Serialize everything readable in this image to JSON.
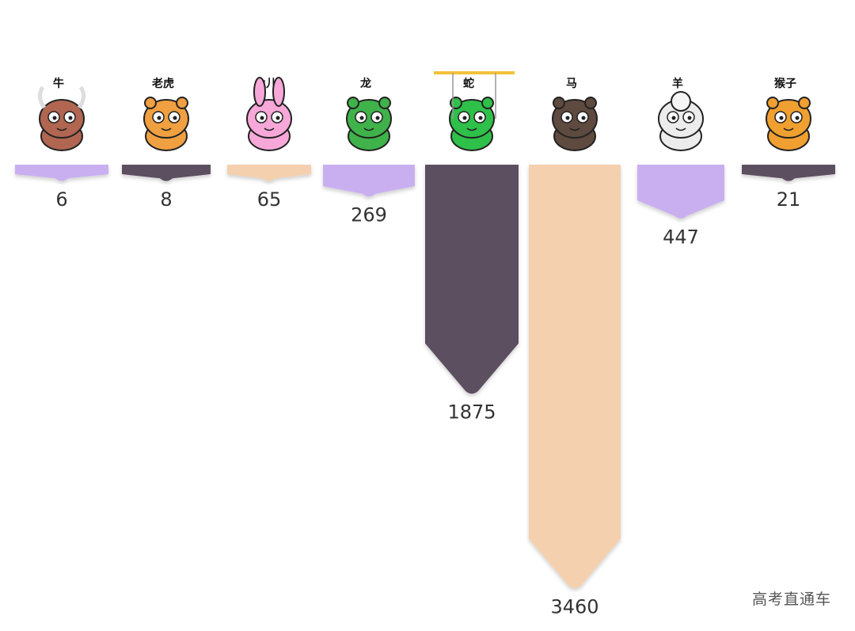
{
  "chart_data": {
    "type": "bar",
    "orientation": "downward",
    "categories": [
      "牛",
      "老虎",
      "兔儿",
      "龙",
      "蛇",
      "马",
      "羊",
      "猴子"
    ],
    "values": [
      6,
      8,
      65,
      269,
      1875,
      3460,
      447,
      21
    ],
    "title": "",
    "xlabel": "",
    "ylabel": "",
    "grid": false,
    "legend": "none"
  },
  "colors": {
    "purple": "#c9aff0",
    "dark": "#5b5060",
    "peach": "#f4d0ae"
  },
  "bar_color_sequence": [
    "purple",
    "dark",
    "peach",
    "purple",
    "dark",
    "peach",
    "purple",
    "dark"
  ],
  "icon_names": [
    "ox-icon",
    "tiger-icon",
    "rabbit-icon",
    "dragon-icon",
    "snake-icon",
    "horse-icon",
    "sheep-icon",
    "monkey-icon"
  ],
  "icon_colors": [
    "#b06650",
    "#f0a040",
    "#f7a8d8",
    "#3fb24a",
    "#2fc04a",
    "#5e4a3e",
    "#ececec",
    "#f0a030"
  ],
  "watermark": "高考直通车"
}
